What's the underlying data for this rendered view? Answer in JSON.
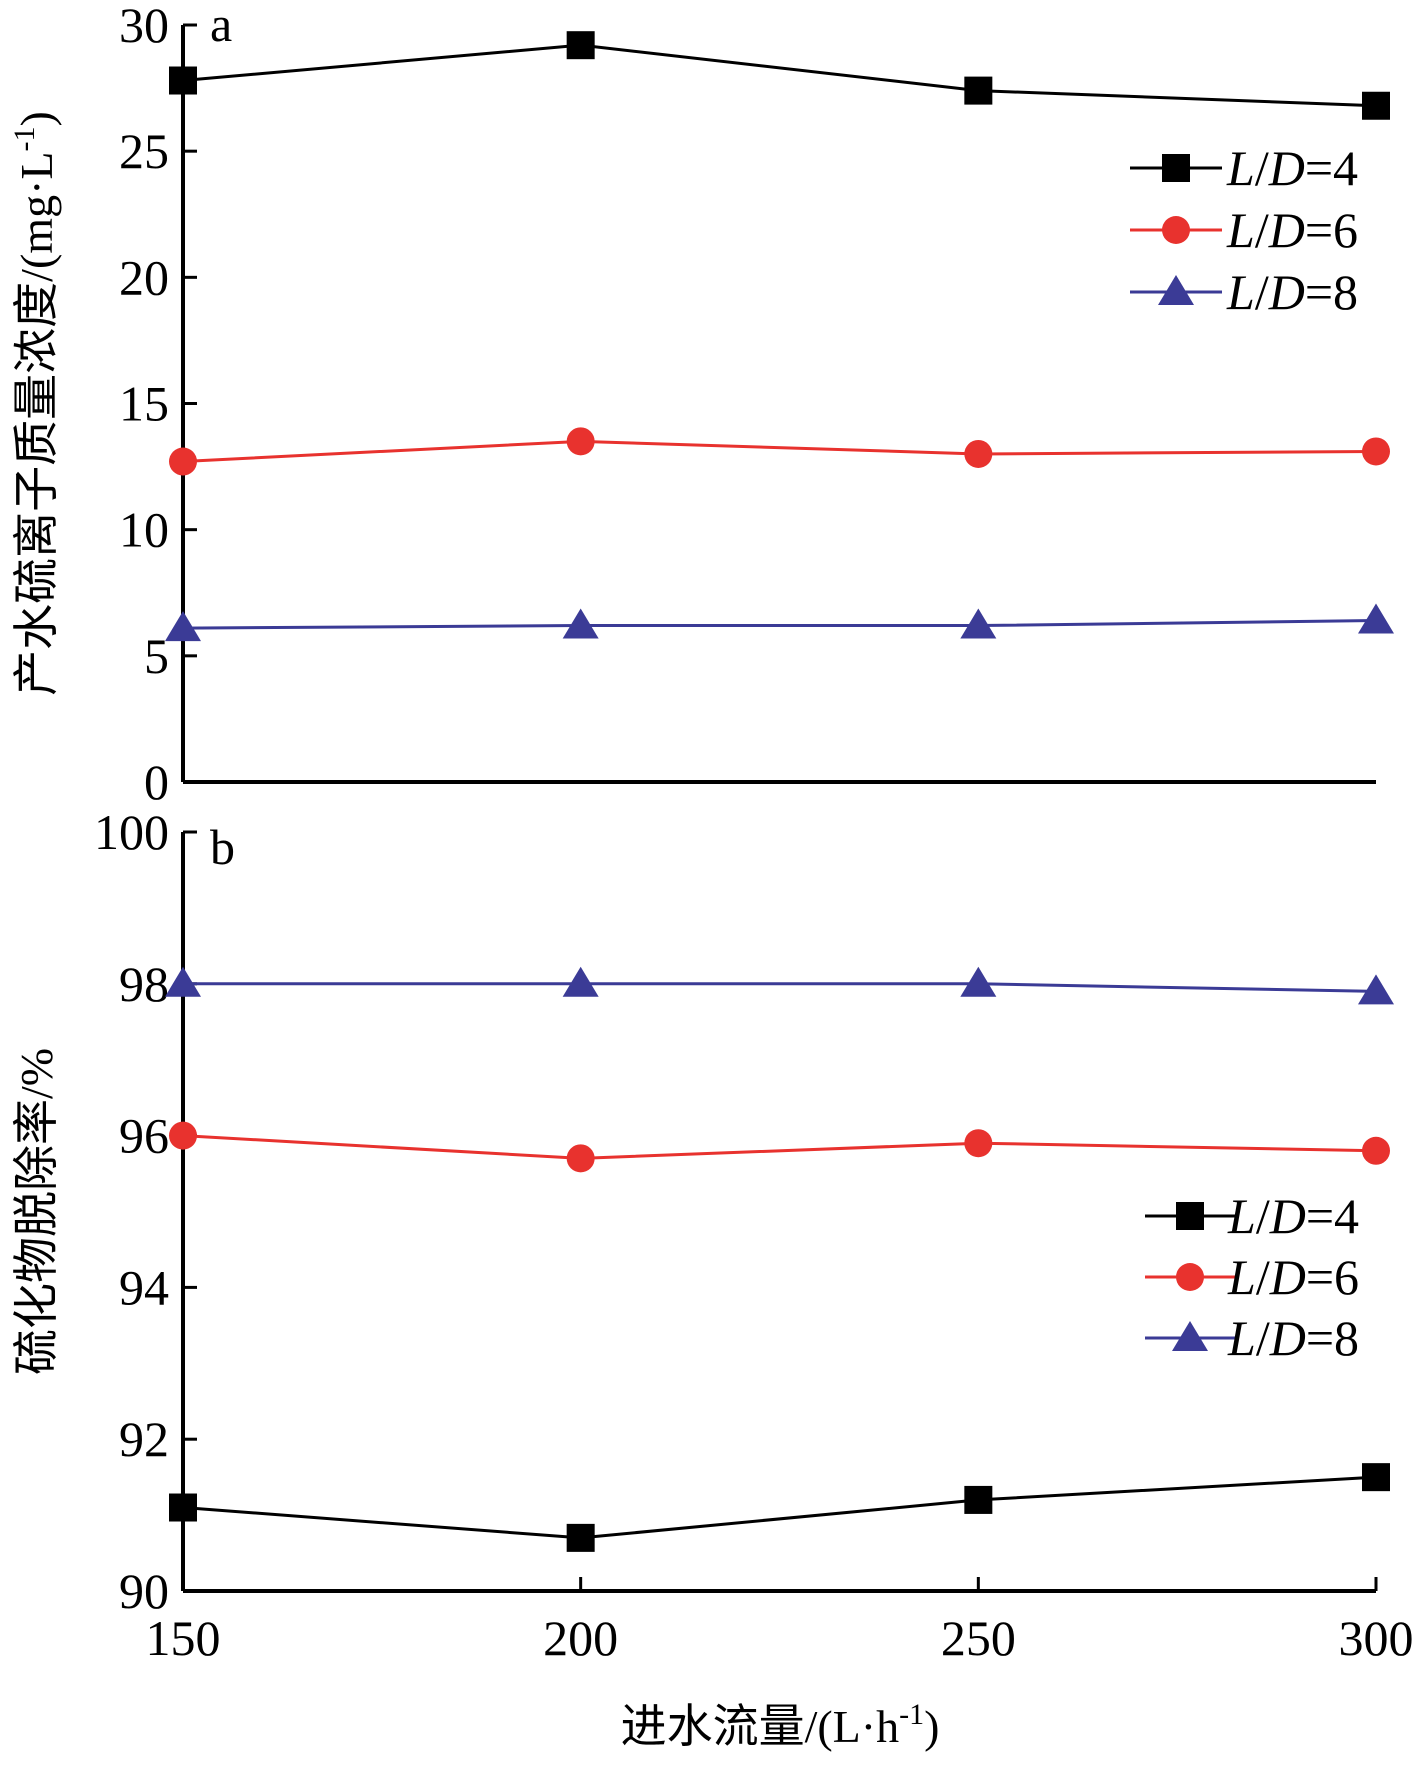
{
  "chart_data": [
    {
      "id": "a",
      "type": "line",
      "panel_label": "a",
      "ylabel": "产水硫离子质量浓度/(mg·L",
      "ylabel_sup": "-1",
      "ylabel_close": ")",
      "ylim": [
        0,
        30
      ],
      "yticks": [
        0,
        5,
        10,
        15,
        20,
        25,
        30
      ],
      "x": [
        150,
        200,
        250,
        300
      ],
      "legend_position": "top-right",
      "series": [
        {
          "name": "L/D=4",
          "name_parts": {
            "l": "L",
            "slash": "/",
            "d": "D",
            "eq": "=4"
          },
          "color": "#000000",
          "marker": "square",
          "values": [
            27.8,
            29.2,
            27.4,
            26.8
          ]
        },
        {
          "name": "L/D=6",
          "name_parts": {
            "l": "L",
            "slash": "/",
            "d": "D",
            "eq": "=6"
          },
          "color": "#e8322e",
          "marker": "circle",
          "values": [
            12.7,
            13.5,
            13.0,
            13.1
          ]
        },
        {
          "name": "L/D=8",
          "name_parts": {
            "l": "L",
            "slash": "/",
            "d": "D",
            "eq": "=8"
          },
          "color": "#3b3b96",
          "marker": "triangle",
          "values": [
            6.1,
            6.2,
            6.2,
            6.4
          ]
        }
      ]
    },
    {
      "id": "b",
      "type": "line",
      "panel_label": "b",
      "ylabel": "硫化物脱除率/%",
      "ylim": [
        90,
        100
      ],
      "yticks": [
        90,
        92,
        94,
        96,
        98,
        100
      ],
      "x": [
        150,
        200,
        250,
        300
      ],
      "xticks": [
        150,
        200,
        250,
        300
      ],
      "xlabel": "进水流量/(L·h",
      "xlabel_sup": "-1",
      "xlabel_close": ")",
      "legend_position": "right",
      "series": [
        {
          "name": "L/D=4",
          "name_parts": {
            "l": "L",
            "slash": "/",
            "d": "D",
            "eq": "=4"
          },
          "color": "#000000",
          "marker": "square",
          "values": [
            91.1,
            90.7,
            91.2,
            91.5
          ]
        },
        {
          "name": "L/D=6",
          "name_parts": {
            "l": "L",
            "slash": "/",
            "d": "D",
            "eq": "=6"
          },
          "color": "#e8322e",
          "marker": "circle",
          "values": [
            96.0,
            95.7,
            95.9,
            95.8
          ]
        },
        {
          "name": "L/D=8",
          "name_parts": {
            "l": "L",
            "slash": "/",
            "d": "D",
            "eq": "=8"
          },
          "color": "#3b3b96",
          "marker": "triangle",
          "values": [
            98.0,
            98.0,
            98.0,
            97.9
          ]
        }
      ]
    }
  ]
}
